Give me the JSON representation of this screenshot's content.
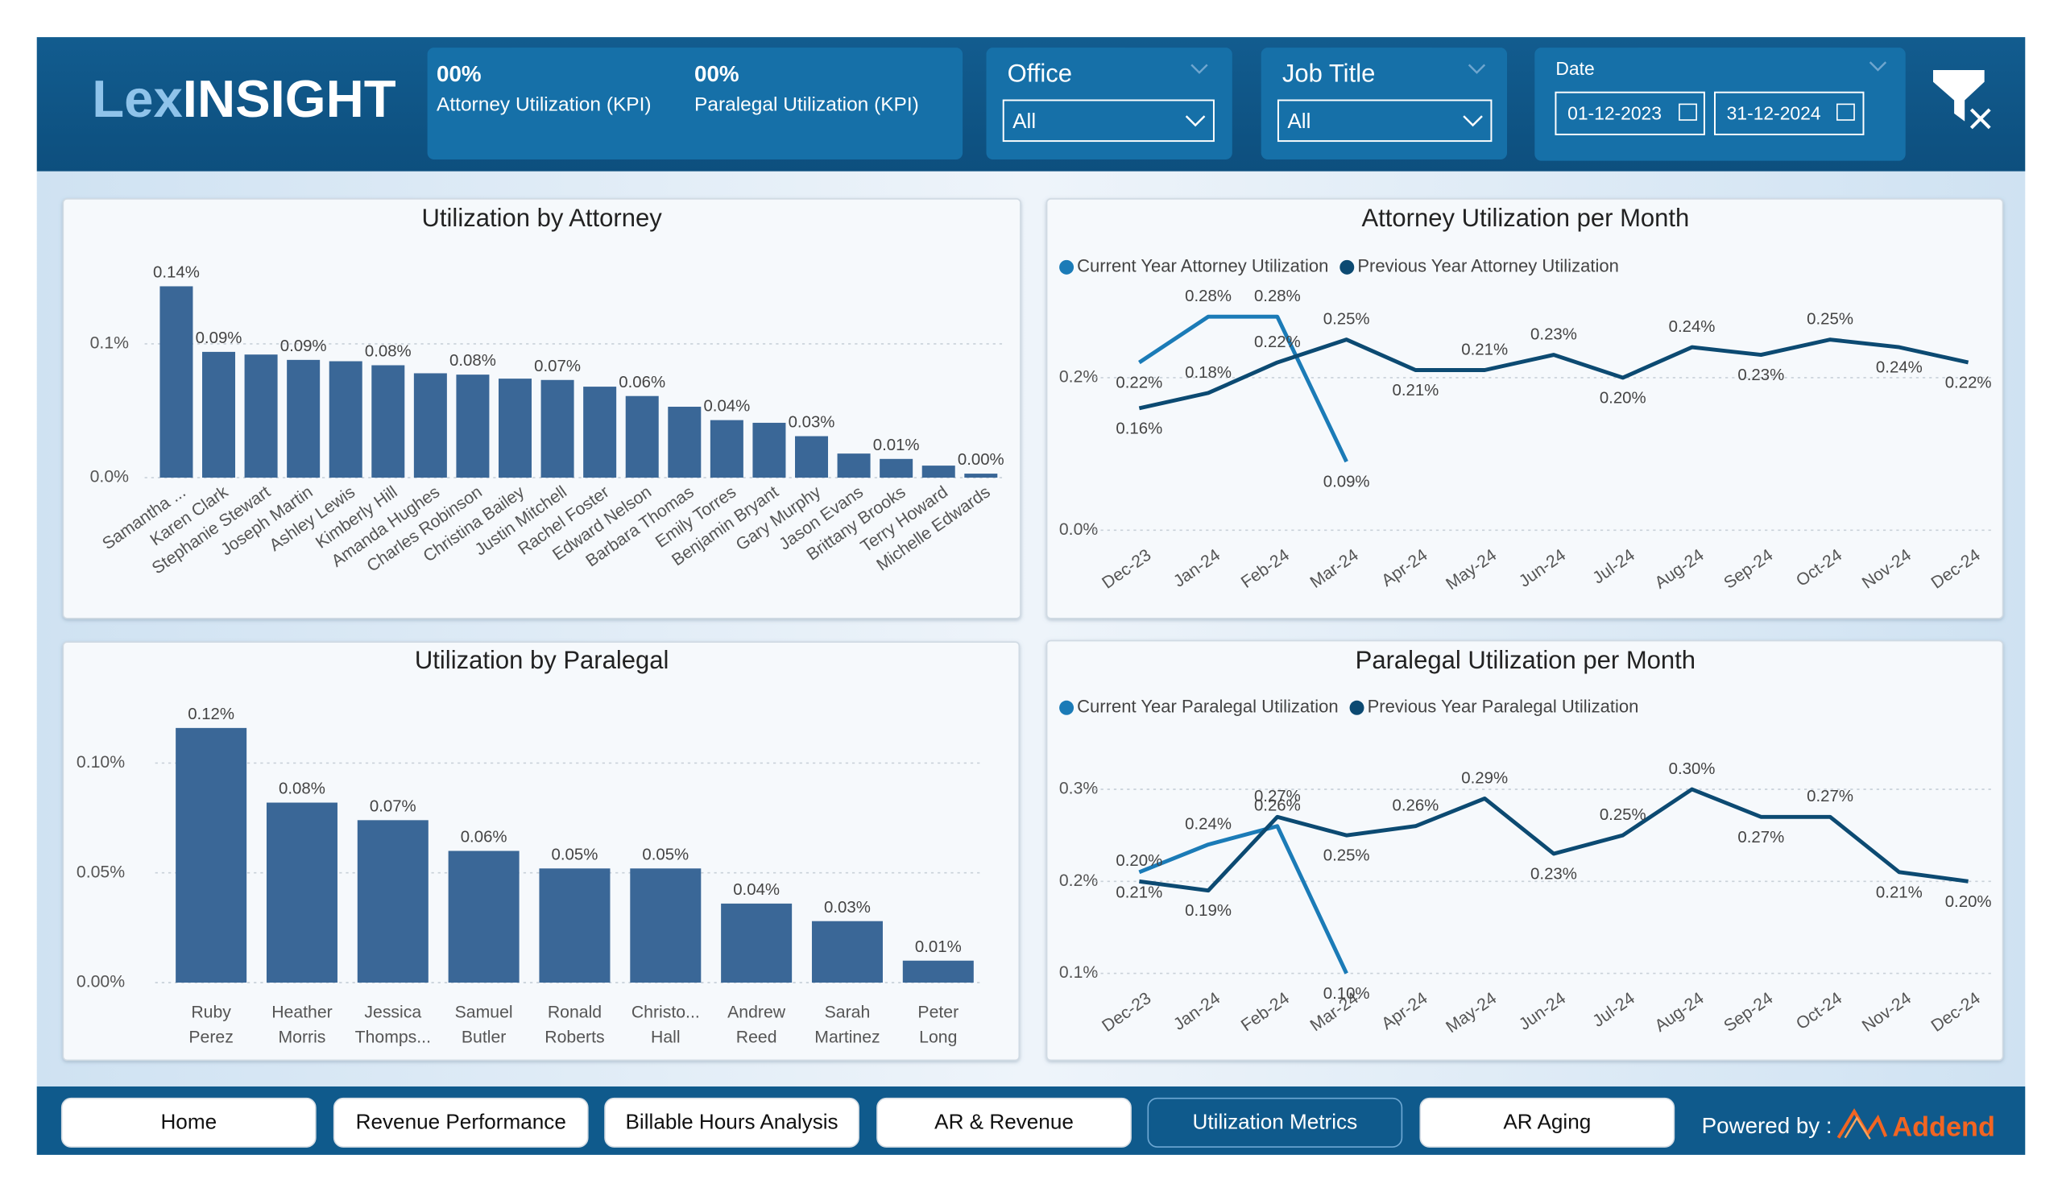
{
  "header": {
    "logo_prefix": "Lex",
    "logo_main": "INSIGHT",
    "kpis": [
      {
        "value": "00%",
        "label": "Attorney Utilization (KPI)"
      },
      {
        "value": "00%",
        "label": "Paralegal Utilization (KPI)"
      }
    ],
    "filters": {
      "office": {
        "label": "Office",
        "value": "All"
      },
      "job_title": {
        "label": "Job Title",
        "value": "All"
      },
      "date": {
        "label": "Date",
        "start": "01-12-2023",
        "end": "31-12-2024"
      }
    }
  },
  "nav": {
    "buttons": [
      "Home",
      "Revenue Performance",
      "Billable Hours Analysis",
      "AR & Revenue",
      "Utilization Metrics",
      "AR Aging"
    ],
    "active": "Utilization Metrics",
    "powered_by": "Powered by :",
    "brand": "Addend"
  },
  "chart_data": [
    {
      "type": "bar",
      "title": "Utilization by Attorney",
      "color": "#3a6797",
      "categories": [
        "Samantha ...",
        "Karen Clark",
        "Stephanie Stewart",
        "Joseph Martin",
        "Ashley Lewis",
        "Kimberly Hill",
        "Amanda Hughes",
        "Charles Robinson",
        "Christina Bailey",
        "Justin Mitchell",
        "Rachel Foster",
        "Edward Nelson",
        "Barbara Thomas",
        "Emily Torres",
        "Benjamin Bryant",
        "Gary Murphy",
        "Jason Evans",
        "Brittany Brooks",
        "Terry Howard",
        "Michelle Edwards"
      ],
      "values": [
        0.143,
        0.094,
        0.092,
        0.088,
        0.087,
        0.084,
        0.078,
        0.077,
        0.074,
        0.073,
        0.068,
        0.061,
        0.053,
        0.043,
        0.041,
        0.031,
        0.018,
        0.014,
        0.009,
        0.003
      ],
      "value_labels": [
        "0.14%",
        "0.09%",
        null,
        "0.09%",
        null,
        "0.08%",
        null,
        "0.08%",
        null,
        "0.07%",
        null,
        "0.06%",
        null,
        "0.04%",
        null,
        "0.03%",
        null,
        "0.01%",
        null,
        "0.00%"
      ],
      "ylim": [
        0,
        0.17
      ],
      "yticks": [
        {
          "value": 0,
          "label": "0.0%"
        },
        {
          "value": 0.1,
          "label": "0.1%"
        }
      ],
      "grid": true
    },
    {
      "type": "line",
      "title": "Attorney Utilization per Month",
      "categories": [
        "Dec-23",
        "Jan-24",
        "Feb-24",
        "Mar-24",
        "Apr-24",
        "May-24",
        "Jun-24",
        "Jul-24",
        "Aug-24",
        "Sep-24",
        "Oct-24",
        "Nov-24",
        "Dec-24"
      ],
      "series": [
        {
          "name": "Current Year Attorney Utilization",
          "color": "#1b7bb7",
          "values": [
            0.22,
            0.28,
            0.28,
            0.09,
            null,
            null,
            null,
            null,
            null,
            null,
            null,
            null,
            null
          ],
          "value_labels": [
            "0.22%",
            "0.28%",
            "0.28%",
            "0.09%",
            null,
            null,
            null,
            null,
            null,
            null,
            null,
            null,
            null
          ]
        },
        {
          "name": "Previous Year Attorney Utilization",
          "color": "#0c4a72",
          "values": [
            0.16,
            0.18,
            0.22,
            0.25,
            0.21,
            0.21,
            0.23,
            0.2,
            0.24,
            0.23,
            0.25,
            0.24,
            0.22
          ],
          "value_labels": [
            "0.16%",
            "0.18%",
            "0.22%",
            "0.25%",
            "0.21%",
            "0.21%",
            "0.23%",
            "0.20%",
            "0.24%",
            "0.23%",
            "0.25%",
            "0.24%",
            "0.22%"
          ]
        }
      ],
      "ylim": [
        0,
        0.3
      ],
      "yticks": [
        {
          "value": 0,
          "label": "0.0%"
        },
        {
          "value": 0.2,
          "label": "0.2%"
        }
      ],
      "grid": true
    },
    {
      "type": "bar",
      "title": "Utilization by Paralegal",
      "color": "#3a6797",
      "categories": [
        "Ruby Perez",
        "Heather Morris",
        "Jessica Thomps...",
        "Samuel Butler",
        "Ronald Roberts",
        "Christo... Hall",
        "Andrew Reed",
        "Sarah Martinez",
        "Peter Long"
      ],
      "values": [
        0.116,
        0.082,
        0.074,
        0.06,
        0.052,
        0.052,
        0.036,
        0.028,
        0.01
      ],
      "value_labels": [
        "0.12%",
        "0.08%",
        "0.07%",
        "0.06%",
        "0.05%",
        "0.05%",
        "0.04%",
        "0.03%",
        "0.01%"
      ],
      "ylim": [
        0,
        0.13
      ],
      "yticks": [
        {
          "value": 0,
          "label": "0.00%"
        },
        {
          "value": 0.05,
          "label": "0.05%"
        },
        {
          "value": 0.1,
          "label": "0.10%"
        }
      ],
      "grid": true
    },
    {
      "type": "line",
      "title": "Paralegal Utilization per Month",
      "categories": [
        "Dec-23",
        "Jan-24",
        "Feb-24",
        "Mar-24",
        "Apr-24",
        "May-24",
        "Jun-24",
        "Jul-24",
        "Aug-24",
        "Sep-24",
        "Oct-24",
        "Nov-24",
        "Dec-24"
      ],
      "series": [
        {
          "name": "Current Year Paralegal Utilization",
          "color": "#1b7bb7",
          "values": [
            0.21,
            0.24,
            0.26,
            0.1,
            null,
            null,
            null,
            null,
            null,
            null,
            null,
            null,
            null
          ],
          "value_labels": [
            "0.21%",
            "0.24%",
            "0.26%",
            "0.10%",
            null,
            null,
            null,
            null,
            null,
            null,
            null,
            null,
            null
          ]
        },
        {
          "name": "Previous Year Paralegal Utilization",
          "color": "#0c4a72",
          "values": [
            0.2,
            0.19,
            0.27,
            0.25,
            0.26,
            0.29,
            0.23,
            0.25,
            0.3,
            0.27,
            0.27,
            0.21,
            0.2
          ],
          "value_labels": [
            "0.20%",
            "0.19%",
            "0.27%",
            "0.25%",
            "0.26%",
            "0.29%",
            "0.23%",
            "0.25%",
            "0.30%",
            "0.27%",
            "0.27%",
            "0.21%",
            "0.20%"
          ]
        }
      ],
      "ylim": [
        0.1,
        0.32
      ],
      "yticks": [
        {
          "value": 0.1,
          "label": "0.1%"
        },
        {
          "value": 0.2,
          "label": "0.2%"
        },
        {
          "value": 0.3,
          "label": "0.3%"
        }
      ],
      "grid": true
    }
  ]
}
